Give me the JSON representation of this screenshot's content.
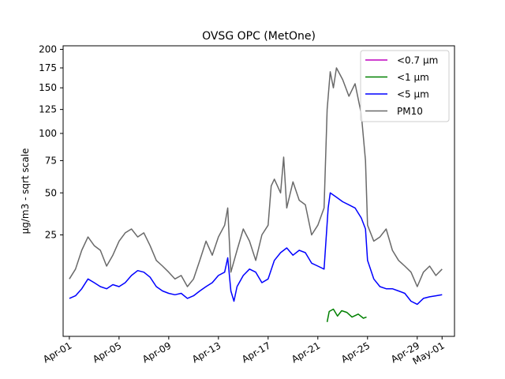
{
  "chart_data": {
    "type": "line",
    "title": "OVSG OPC (MetOne)",
    "xlabel": "",
    "ylabel": "µg/m3 - sqrt scale",
    "y_scale": "sqrt",
    "ylim": [
      0,
      205
    ],
    "xlim": [
      "2021-03-31 12:00",
      "2021-05-02 00:00"
    ],
    "y_ticks": [
      25,
      50,
      75,
      100,
      125,
      150,
      175,
      200
    ],
    "x_ticks": [
      {
        "date": "2021-04-01",
        "label": "Apr-01"
      },
      {
        "date": "2021-04-05",
        "label": "Apr-05"
      },
      {
        "date": "2021-04-09",
        "label": "Apr-09"
      },
      {
        "date": "2021-04-13",
        "label": "Apr-13"
      },
      {
        "date": "2021-04-17",
        "label": "Apr-17"
      },
      {
        "date": "2021-04-21",
        "label": "Apr-21"
      },
      {
        "date": "2021-04-25",
        "label": "Apr-25"
      },
      {
        "date": "2021-04-29",
        "label": "Apr-29"
      },
      {
        "date": "2021-05-01",
        "label": "May-01"
      }
    ],
    "legend_position": "top-right",
    "grid": false,
    "series": [
      {
        "name": "<0.7 µm",
        "color": "#bf00bf",
        "points": []
      },
      {
        "name": "<1 µm",
        "color": "#008000",
        "points": [
          [
            "2021-04-21 18:00",
            0.5
          ],
          [
            "2021-04-21 22:00",
            1.5
          ],
          [
            "2021-04-22 06:00",
            1.8
          ],
          [
            "2021-04-22 14:00",
            1.0
          ],
          [
            "2021-04-22 22:00",
            1.6
          ],
          [
            "2021-04-23 08:00",
            1.4
          ],
          [
            "2021-04-23 18:00",
            0.9
          ],
          [
            "2021-04-24 06:00",
            1.2
          ],
          [
            "2021-04-24 16:00",
            0.8
          ],
          [
            "2021-04-24 22:00",
            0.9
          ]
        ]
      },
      {
        "name": "<5 µm",
        "color": "#0000ff",
        "points": [
          [
            "2021-04-01 00:00",
            3.5
          ],
          [
            "2021-04-01 12:00",
            4.0
          ],
          [
            "2021-04-02 00:00",
            5.5
          ],
          [
            "2021-04-02 12:00",
            8.0
          ],
          [
            "2021-04-03 00:00",
            7.0
          ],
          [
            "2021-04-03 12:00",
            6.0
          ],
          [
            "2021-04-04 00:00",
            5.5
          ],
          [
            "2021-04-04 12:00",
            6.5
          ],
          [
            "2021-04-05 00:00",
            6.0
          ],
          [
            "2021-04-05 12:00",
            7.0
          ],
          [
            "2021-04-06 00:00",
            9.0
          ],
          [
            "2021-04-06 12:00",
            10.5
          ],
          [
            "2021-04-07 00:00",
            10.0
          ],
          [
            "2021-04-07 12:00",
            8.5
          ],
          [
            "2021-04-08 00:00",
            6.0
          ],
          [
            "2021-04-08 12:00",
            5.0
          ],
          [
            "2021-04-09 00:00",
            4.5
          ],
          [
            "2021-04-09 12:00",
            4.2
          ],
          [
            "2021-04-10 00:00",
            4.5
          ],
          [
            "2021-04-10 12:00",
            3.5
          ],
          [
            "2021-04-11 00:00",
            4.0
          ],
          [
            "2021-04-11 12:00",
            5.0
          ],
          [
            "2021-04-12 00:00",
            6.0
          ],
          [
            "2021-04-12 12:00",
            7.0
          ],
          [
            "2021-04-13 00:00",
            9.0
          ],
          [
            "2021-04-13 12:00",
            10.0
          ],
          [
            "2021-04-13 18:00",
            15.0
          ],
          [
            "2021-04-14 00:00",
            5.0
          ],
          [
            "2021-04-14 06:00",
            3.0
          ],
          [
            "2021-04-14 12:00",
            6.0
          ],
          [
            "2021-04-15 00:00",
            9.0
          ],
          [
            "2021-04-15 12:00",
            11.0
          ],
          [
            "2021-04-16 00:00",
            10.0
          ],
          [
            "2021-04-16 12:00",
            7.0
          ],
          [
            "2021-04-17 00:00",
            8.0
          ],
          [
            "2021-04-17 12:00",
            14.0
          ],
          [
            "2021-04-18 00:00",
            17.0
          ],
          [
            "2021-04-18 12:00",
            19.0
          ],
          [
            "2021-04-19 00:00",
            16.0
          ],
          [
            "2021-04-19 12:00",
            18.0
          ],
          [
            "2021-04-20 00:00",
            17.0
          ],
          [
            "2021-04-20 12:00",
            13.0
          ],
          [
            "2021-04-21 00:00",
            12.0
          ],
          [
            "2021-04-21 12:00",
            11.0
          ],
          [
            "2021-04-21 20:00",
            40.0
          ],
          [
            "2021-04-22 00:00",
            50.0
          ],
          [
            "2021-04-22 12:00",
            47.0
          ],
          [
            "2021-04-23 00:00",
            44.0
          ],
          [
            "2021-04-23 12:00",
            42.0
          ],
          [
            "2021-04-24 00:00",
            40.0
          ],
          [
            "2021-04-24 12:00",
            34.0
          ],
          [
            "2021-04-24 20:00",
            28.0
          ],
          [
            "2021-04-25 00:00",
            14.0
          ],
          [
            "2021-04-25 12:00",
            8.0
          ],
          [
            "2021-04-26 00:00",
            6.0
          ],
          [
            "2021-04-26 12:00",
            5.5
          ],
          [
            "2021-04-27 00:00",
            5.5
          ],
          [
            "2021-04-27 12:00",
            5.0
          ],
          [
            "2021-04-28 00:00",
            4.5
          ],
          [
            "2021-04-28 12:00",
            3.0
          ],
          [
            "2021-04-29 00:00",
            2.5
          ],
          [
            "2021-04-29 12:00",
            3.5
          ],
          [
            "2021-04-30 00:00",
            3.8
          ],
          [
            "2021-04-30 12:00",
            4.0
          ],
          [
            "2021-05-01 00:00",
            4.2
          ]
        ]
      },
      {
        "name": "PM10",
        "color": "#696969",
        "points": [
          [
            "2021-04-01 00:00",
            8.0
          ],
          [
            "2021-04-01 12:00",
            11.0
          ],
          [
            "2021-04-02 00:00",
            18.0
          ],
          [
            "2021-04-02 12:00",
            24.0
          ],
          [
            "2021-04-03 00:00",
            20.0
          ],
          [
            "2021-04-03 12:00",
            18.0
          ],
          [
            "2021-04-04 00:00",
            12.0
          ],
          [
            "2021-04-04 12:00",
            16.0
          ],
          [
            "2021-04-05 00:00",
            22.0
          ],
          [
            "2021-04-05 12:00",
            26.0
          ],
          [
            "2021-04-06 00:00",
            28.0
          ],
          [
            "2021-04-06 12:00",
            24.0
          ],
          [
            "2021-04-07 00:00",
            26.0
          ],
          [
            "2021-04-07 12:00",
            20.0
          ],
          [
            "2021-04-08 00:00",
            14.0
          ],
          [
            "2021-04-08 12:00",
            12.0
          ],
          [
            "2021-04-09 00:00",
            10.0
          ],
          [
            "2021-04-09 12:00",
            8.0
          ],
          [
            "2021-04-10 00:00",
            9.0
          ],
          [
            "2021-04-10 12:00",
            6.0
          ],
          [
            "2021-04-11 00:00",
            8.0
          ],
          [
            "2021-04-11 12:00",
            14.0
          ],
          [
            "2021-04-12 00:00",
            22.0
          ],
          [
            "2021-04-12 12:00",
            16.0
          ],
          [
            "2021-04-13 00:00",
            24.0
          ],
          [
            "2021-04-13 12:00",
            30.0
          ],
          [
            "2021-04-13 18:00",
            40.0
          ],
          [
            "2021-04-14 00:00",
            10.0
          ],
          [
            "2021-04-14 12:00",
            18.0
          ],
          [
            "2021-04-15 00:00",
            28.0
          ],
          [
            "2021-04-15 12:00",
            22.0
          ],
          [
            "2021-04-16 00:00",
            14.0
          ],
          [
            "2021-04-16 12:00",
            25.0
          ],
          [
            "2021-04-17 00:00",
            30.0
          ],
          [
            "2021-04-17 06:00",
            55.0
          ],
          [
            "2021-04-17 12:00",
            60.0
          ],
          [
            "2021-04-18 00:00",
            50.0
          ],
          [
            "2021-04-18 06:00",
            78.0
          ],
          [
            "2021-04-18 12:00",
            40.0
          ],
          [
            "2021-04-19 00:00",
            58.0
          ],
          [
            "2021-04-19 12:00",
            45.0
          ],
          [
            "2021-04-20 00:00",
            42.0
          ],
          [
            "2021-04-20 12:00",
            25.0
          ],
          [
            "2021-04-21 00:00",
            30.0
          ],
          [
            "2021-04-21 12:00",
            40.0
          ],
          [
            "2021-04-21 18:00",
            125.0
          ],
          [
            "2021-04-22 00:00",
            170.0
          ],
          [
            "2021-04-22 06:00",
            150.0
          ],
          [
            "2021-04-22 12:00",
            175.0
          ],
          [
            "2021-04-23 00:00",
            160.0
          ],
          [
            "2021-04-23 12:00",
            140.0
          ],
          [
            "2021-04-24 00:00",
            155.0
          ],
          [
            "2021-04-24 12:00",
            120.0
          ],
          [
            "2021-04-24 20:00",
            75.0
          ],
          [
            "2021-04-25 00:00",
            30.0
          ],
          [
            "2021-04-25 12:00",
            22.0
          ],
          [
            "2021-04-26 00:00",
            24.0
          ],
          [
            "2021-04-26 12:00",
            28.0
          ],
          [
            "2021-04-27 00:00",
            18.0
          ],
          [
            "2021-04-27 12:00",
            14.0
          ],
          [
            "2021-04-28 00:00",
            12.0
          ],
          [
            "2021-04-28 12:00",
            10.0
          ],
          [
            "2021-04-29 00:00",
            6.0
          ],
          [
            "2021-04-29 12:00",
            10.0
          ],
          [
            "2021-04-30 00:00",
            12.0
          ],
          [
            "2021-04-30 12:00",
            9.0
          ],
          [
            "2021-05-01 00:00",
            11.0
          ]
        ]
      }
    ]
  }
}
